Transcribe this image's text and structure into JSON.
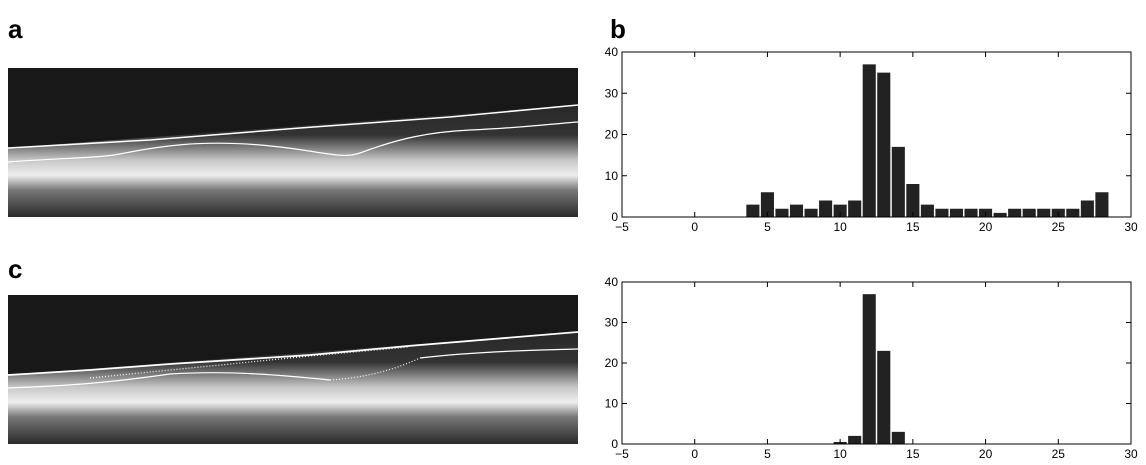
{
  "panel_labels": [
    "a",
    "b",
    "c"
  ],
  "chart_data": [
    {
      "type": "bar",
      "color": "#222222",
      "x": [
        4,
        5,
        6,
        7,
        8,
        9,
        10,
        11,
        12,
        13,
        14,
        15,
        16,
        17,
        18,
        19,
        20,
        21,
        22,
        23,
        24,
        25,
        26,
        27,
        28
      ],
      "values": [
        3,
        6,
        2,
        3,
        2,
        4,
        3,
        4,
        37,
        35,
        17,
        8,
        3,
        2,
        2,
        2,
        2,
        1,
        2,
        2,
        2,
        2,
        2,
        4,
        6
      ],
      "xlim": [
        -5,
        30
      ],
      "ylim": [
        0,
        40
      ],
      "xticks": [
        {
          "value": -5,
          "label": "−5"
        },
        0,
        5,
        10,
        15,
        20,
        25,
        30
      ],
      "yticks": [
        0,
        10,
        20,
        30,
        40
      ]
    },
    {
      "type": "bar",
      "color": "#222222",
      "x": [
        10,
        11,
        12,
        13,
        14
      ],
      "values": [
        0.5,
        2,
        37,
        23,
        3
      ],
      "xlim": [
        -5,
        30
      ],
      "ylim": [
        0,
        40
      ],
      "xticks": [
        {
          "value": -5,
          "label": "−5"
        },
        0,
        5,
        10,
        15,
        20,
        25,
        30
      ],
      "yticks": [
        0,
        10,
        20,
        30,
        40
      ]
    }
  ]
}
